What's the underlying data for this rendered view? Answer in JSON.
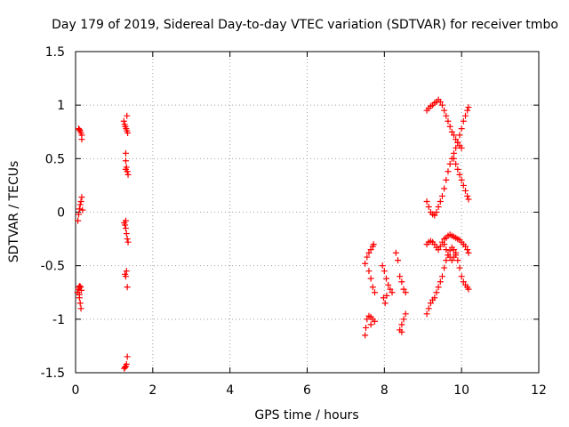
{
  "chart_data": {
    "type": "scatter",
    "title": "Day 179 of 2019, Sidereal Day-to-day VTEC variation (SDTVAR) for receiver tmbo",
    "xlabel": "GPS time / hours",
    "ylabel": "SDTVAR / TECUs",
    "xlim": [
      0,
      12
    ],
    "ylim": [
      -1.5,
      1.5
    ],
    "xticks": [
      0,
      2,
      4,
      6,
      8,
      10,
      12
    ],
    "xtick_labels": [
      "0",
      "2",
      "4",
      "6",
      "8",
      "10",
      "12"
    ],
    "yticks": [
      -1.5,
      -1,
      -0.5,
      0,
      0.5,
      1,
      1.5
    ],
    "ytick_labels": [
      "-1.5",
      "-1",
      "-0.5",
      "0",
      "0.5",
      "1",
      "1.5"
    ],
    "grid": true,
    "marker": "+",
    "color": "#ff0000",
    "series": [
      {
        "name": "SDTVAR",
        "points": [
          [
            0.08,
            0.78
          ],
          [
            0.1,
            0.77
          ],
          [
            0.12,
            0.76
          ],
          [
            0.14,
            0.74
          ],
          [
            0.16,
            0.72
          ],
          [
            0.16,
            0.68
          ],
          [
            0.06,
            -0.08
          ],
          [
            0.08,
            -0.02
          ],
          [
            0.1,
            0.03
          ],
          [
            0.12,
            0.07
          ],
          [
            0.14,
            0.1
          ],
          [
            0.16,
            0.14
          ],
          [
            0.18,
            0.02
          ],
          [
            0.05,
            -0.75
          ],
          [
            0.07,
            -0.72
          ],
          [
            0.09,
            -0.7
          ],
          [
            0.11,
            -0.69
          ],
          [
            0.13,
            -0.7
          ],
          [
            0.15,
            -0.73
          ],
          [
            0.1,
            -0.8
          ],
          [
            0.12,
            -0.85
          ],
          [
            0.14,
            -0.9
          ],
          [
            0.1,
            -0.77
          ],
          [
            1.25,
            0.85
          ],
          [
            1.27,
            0.82
          ],
          [
            1.29,
            0.8
          ],
          [
            1.31,
            0.78
          ],
          [
            1.33,
            0.76
          ],
          [
            1.35,
            0.74
          ],
          [
            1.33,
            0.9
          ],
          [
            1.3,
            0.55
          ],
          [
            1.3,
            0.48
          ],
          [
            1.32,
            0.42
          ],
          [
            1.34,
            0.38
          ],
          [
            1.36,
            0.35
          ],
          [
            1.3,
            0.4
          ],
          [
            1.26,
            -0.1
          ],
          [
            1.28,
            -0.12
          ],
          [
            1.3,
            -0.15
          ],
          [
            1.32,
            -0.2
          ],
          [
            1.34,
            -0.25
          ],
          [
            1.36,
            -0.28
          ],
          [
            1.3,
            -0.08
          ],
          [
            1.28,
            -0.58
          ],
          [
            1.3,
            -0.6
          ],
          [
            1.32,
            -0.55
          ],
          [
            1.34,
            -0.7
          ],
          [
            1.26,
            -1.46
          ],
          [
            1.28,
            -1.45
          ],
          [
            1.3,
            -1.44
          ],
          [
            1.32,
            -1.42
          ],
          [
            1.34,
            -1.35
          ],
          [
            7.5,
            -0.48
          ],
          [
            7.55,
            -0.42
          ],
          [
            7.6,
            -0.38
          ],
          [
            7.65,
            -0.35
          ],
          [
            7.7,
            -0.32
          ],
          [
            7.72,
            -0.3
          ],
          [
            7.6,
            -0.55
          ],
          [
            7.65,
            -0.62
          ],
          [
            7.7,
            -0.7
          ],
          [
            7.75,
            -0.75
          ],
          [
            7.5,
            -1.15
          ],
          [
            7.52,
            -1.08
          ],
          [
            7.55,
            -1.0
          ],
          [
            7.6,
            -0.97
          ],
          [
            7.65,
            -0.98
          ],
          [
            7.7,
            -1.0
          ],
          [
            7.75,
            -1.02
          ],
          [
            7.65,
            -1.05
          ],
          [
            7.95,
            -0.5
          ],
          [
            8.0,
            -0.55
          ],
          [
            8.05,
            -0.62
          ],
          [
            8.1,
            -0.68
          ],
          [
            8.15,
            -0.72
          ],
          [
            8.2,
            -0.75
          ],
          [
            7.98,
            -0.8
          ],
          [
            8.02,
            -0.85
          ],
          [
            8.06,
            -0.78
          ],
          [
            8.3,
            -0.38
          ],
          [
            8.35,
            -0.45
          ],
          [
            8.4,
            -0.6
          ],
          [
            8.45,
            -0.65
          ],
          [
            8.5,
            -0.72
          ],
          [
            8.55,
            -0.75
          ],
          [
            8.4,
            -1.1
          ],
          [
            8.45,
            -1.05
          ],
          [
            8.5,
            -1.0
          ],
          [
            8.55,
            -0.95
          ],
          [
            8.45,
            -1.12
          ],
          [
            9.1,
            0.95
          ],
          [
            9.15,
            0.97
          ],
          [
            9.2,
            0.99
          ],
          [
            9.25,
            1.0
          ],
          [
            9.3,
            1.02
          ],
          [
            9.35,
            1.03
          ],
          [
            9.4,
            1.05
          ],
          [
            9.45,
            1.03
          ],
          [
            9.5,
            1.0
          ],
          [
            9.55,
            0.95
          ],
          [
            9.6,
            0.9
          ],
          [
            9.65,
            0.85
          ],
          [
            9.7,
            0.8
          ],
          [
            9.75,
            0.75
          ],
          [
            9.8,
            0.72
          ],
          [
            9.85,
            0.68
          ],
          [
            9.9,
            0.65
          ],
          [
            9.95,
            0.62
          ],
          [
            10.0,
            0.6
          ],
          [
            9.1,
            0.1
          ],
          [
            9.15,
            0.05
          ],
          [
            9.2,
            0.0
          ],
          [
            9.25,
            -0.02
          ],
          [
            9.3,
            -0.03
          ],
          [
            9.35,
            0.0
          ],
          [
            9.4,
            0.05
          ],
          [
            9.45,
            0.1
          ],
          [
            9.5,
            0.15
          ],
          [
            9.55,
            0.22
          ],
          [
            9.6,
            0.3
          ],
          [
            9.65,
            0.38
          ],
          [
            9.7,
            0.45
          ],
          [
            9.75,
            0.5
          ],
          [
            9.8,
            0.55
          ],
          [
            9.85,
            0.6
          ],
          [
            9.9,
            0.65
          ],
          [
            9.95,
            0.72
          ],
          [
            10.0,
            0.78
          ],
          [
            10.05,
            0.85
          ],
          [
            10.1,
            0.9
          ],
          [
            10.15,
            0.95
          ],
          [
            10.18,
            0.98
          ],
          [
            9.8,
            0.5
          ],
          [
            9.85,
            0.45
          ],
          [
            9.9,
            0.4
          ],
          [
            9.95,
            0.35
          ],
          [
            10.0,
            0.3
          ],
          [
            10.05,
            0.25
          ],
          [
            10.1,
            0.2
          ],
          [
            10.15,
            0.15
          ],
          [
            10.18,
            0.12
          ],
          [
            9.1,
            -0.3
          ],
          [
            9.15,
            -0.28
          ],
          [
            9.2,
            -0.27
          ],
          [
            9.25,
            -0.28
          ],
          [
            9.3,
            -0.3
          ],
          [
            9.35,
            -0.33
          ],
          [
            9.4,
            -0.35
          ],
          [
            9.45,
            -0.32
          ],
          [
            9.5,
            -0.28
          ],
          [
            9.55,
            -0.25
          ],
          [
            9.6,
            -0.24
          ],
          [
            9.65,
            -0.22
          ],
          [
            9.7,
            -0.21
          ],
          [
            9.75,
            -0.22
          ],
          [
            9.8,
            -0.23
          ],
          [
            9.85,
            -0.24
          ],
          [
            9.9,
            -0.25
          ],
          [
            9.95,
            -0.26
          ],
          [
            10.0,
            -0.28
          ],
          [
            10.05,
            -0.3
          ],
          [
            10.1,
            -0.32
          ],
          [
            10.15,
            -0.35
          ],
          [
            10.18,
            -0.38
          ],
          [
            9.1,
            -0.95
          ],
          [
            9.15,
            -0.9
          ],
          [
            9.2,
            -0.85
          ],
          [
            9.25,
            -0.82
          ],
          [
            9.3,
            -0.8
          ],
          [
            9.35,
            -0.75
          ],
          [
            9.4,
            -0.7
          ],
          [
            9.45,
            -0.65
          ],
          [
            9.5,
            -0.6
          ],
          [
            9.55,
            -0.52
          ],
          [
            9.6,
            -0.45
          ],
          [
            9.65,
            -0.4
          ],
          [
            9.7,
            -0.36
          ],
          [
            9.75,
            -0.33
          ],
          [
            9.8,
            -0.35
          ],
          [
            9.85,
            -0.38
          ],
          [
            9.9,
            -0.45
          ],
          [
            9.95,
            -0.52
          ],
          [
            10.0,
            -0.6
          ],
          [
            10.05,
            -0.65
          ],
          [
            10.1,
            -0.68
          ],
          [
            10.15,
            -0.7
          ],
          [
            10.18,
            -0.72
          ],
          [
            9.55,
            -0.3
          ],
          [
            9.6,
            -0.35
          ],
          [
            9.65,
            -0.4
          ],
          [
            9.7,
            -0.42
          ],
          [
            9.75,
            -0.45
          ],
          [
            9.8,
            -0.42
          ],
          [
            9.85,
            -0.4
          ]
        ]
      }
    ]
  }
}
